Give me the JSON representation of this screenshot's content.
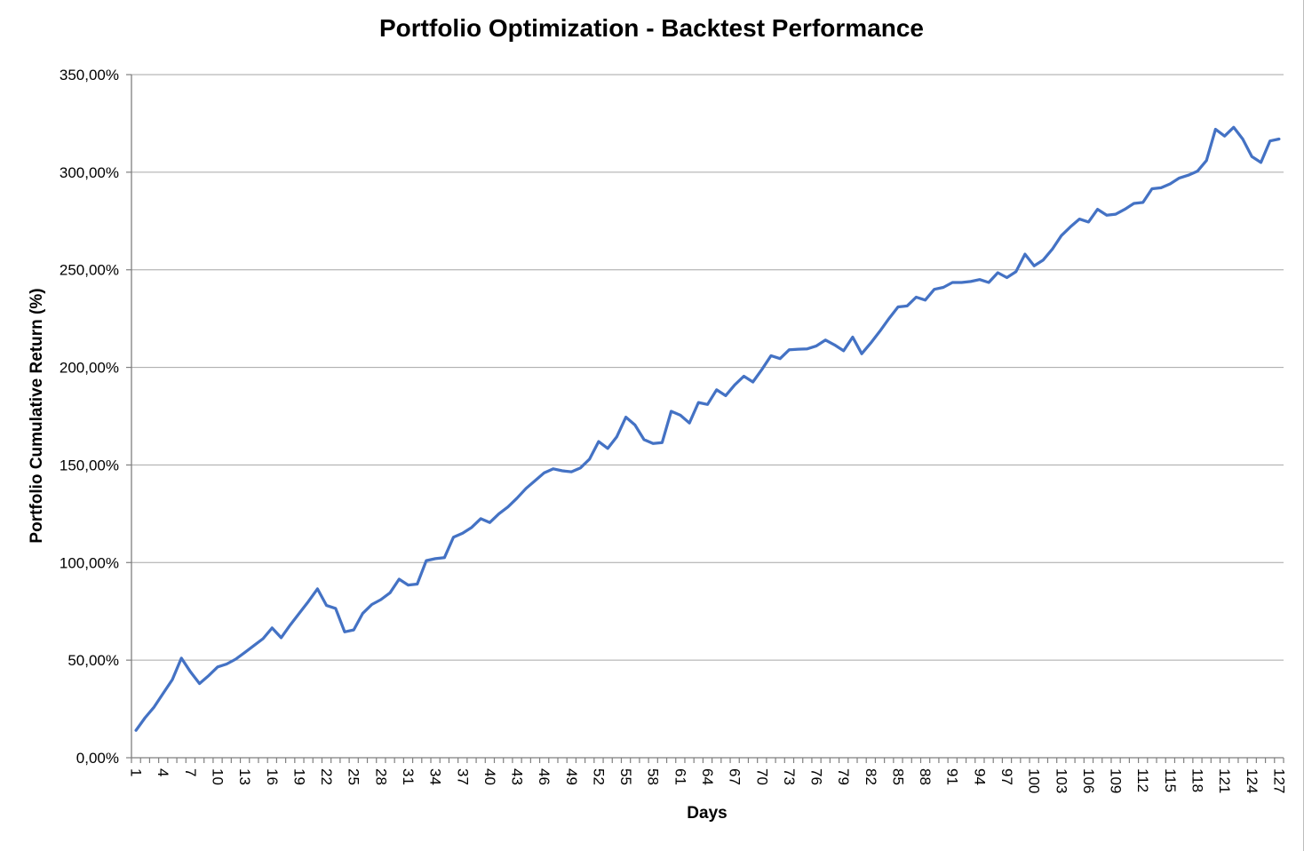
{
  "chart_data": {
    "type": "line",
    "title": "Portfolio Optimization - Backtest Performance",
    "xlabel": "Days",
    "ylabel": "Portfolio Cumulative Return (%)",
    "legend": "none",
    "grid": "horizontal",
    "x_range": [
      1,
      127
    ],
    "n_points": 127,
    "x_tick_interval": 3,
    "x_tick_labels": [
      "1",
      "4",
      "7",
      "10",
      "13",
      "16",
      "19",
      "22",
      "25",
      "28",
      "31",
      "34",
      "37",
      "40",
      "43",
      "46",
      "49",
      "52",
      "55",
      "58",
      "61",
      "64",
      "67",
      "70",
      "73",
      "76",
      "79",
      "82",
      "85",
      "88",
      "91",
      "94",
      "97",
      "100",
      "103",
      "106",
      "109",
      "112",
      "115",
      "118",
      "121",
      "124",
      "127"
    ],
    "ylim": [
      0,
      350
    ],
    "ytick_step": 50,
    "y_tick_labels": [
      "0,00%",
      "50,00%",
      "100,00%",
      "150,00%",
      "200,00%",
      "250,00%",
      "300,00%",
      "350,00%"
    ],
    "values": [
      14,
      20.5,
      26,
      33,
      40,
      51,
      44,
      38,
      42,
      46.5,
      48,
      50.5,
      54,
      57.5,
      61,
      66.5,
      61.5,
      68,
      74,
      80,
      86.5,
      78,
      76.5,
      64.5,
      65.5,
      74,
      78.5,
      81,
      84.5,
      91.5,
      88.5,
      89,
      101,
      102,
      102.5,
      113,
      115,
      118,
      122.5,
      120.5,
      125,
      128.5,
      133,
      138,
      142,
      146,
      148,
      147,
      146.5,
      148.5,
      153,
      162,
      158.5,
      164.5,
      174.5,
      170.5,
      163,
      161,
      161.5,
      177.5,
      175.5,
      171.5,
      182,
      181,
      188.5,
      185.5,
      191,
      195.5,
      192.5,
      199,
      206,
      204.5,
      209,
      209.3,
      209.5,
      211,
      214,
      211.5,
      208.5,
      215.5,
      207,
      212.5,
      218.5,
      225,
      231,
      231.5,
      236,
      234.5,
      240,
      241,
      243.5,
      243.5,
      244,
      245,
      243.5,
      248.5,
      246,
      249,
      258,
      252,
      255,
      260.5,
      267.5,
      272,
      276,
      274.5,
      281,
      278,
      278.5,
      281,
      284,
      284.5,
      291.5,
      292,
      294,
      297,
      298.5,
      300.5,
      306,
      322,
      318.5,
      323,
      317,
      308,
      305,
      316,
      317
    ],
    "colors": {
      "line": "#4472C4",
      "grid": "#A6A6A6",
      "axis": "#7F7F7F",
      "text": "#000000",
      "background": "#FFFFFF"
    }
  }
}
